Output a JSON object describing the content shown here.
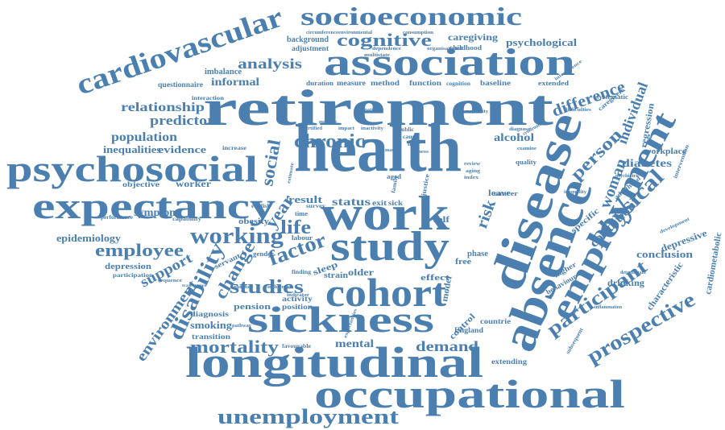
{
  "colors": {
    "word": "#4a7fb0",
    "background": "#ffffff"
  },
  "words": [
    "health",
    "retirement",
    "work",
    "disease",
    "study",
    "absence",
    "cohort",
    "sickness",
    "longitudinal",
    "occupational",
    "association",
    "psychosocial",
    "expectancy",
    "employment",
    "socioeconomic",
    "cardiovascular",
    "unemployment",
    "working",
    "chronic",
    "factor",
    "cognitive",
    "participant",
    "prospective",
    "disability",
    "studies",
    "mortality",
    "change",
    "physical",
    "employee",
    "environment",
    "support",
    "person",
    "analysis",
    "relationship",
    "predictor",
    "population",
    "inequalities",
    "evidence",
    "life",
    "social",
    "year",
    "status",
    "result",
    "demand",
    "mental",
    "risk",
    "woman",
    "difference",
    "individual",
    "condition",
    "depression",
    "epidemiology",
    "symptom",
    "smoking",
    "diagnosis",
    "pension",
    "activity",
    "position",
    "transition",
    "caregiving",
    "psychological",
    "background",
    "adjustment",
    "childhood",
    "alcohol",
    "diabetes",
    "conclusion",
    "depressive",
    "workplace",
    "regression",
    "characteristic",
    "cardiometabolic",
    "drinking",
    "behaviour",
    "higher",
    "specific",
    "England",
    "countrie",
    "extending",
    "informal",
    "imbalance",
    "questionnaire",
    "objective",
    "worker",
    "obesity",
    "older",
    "strain",
    "sleep",
    "effect",
    "control",
    "model",
    "free",
    "phase",
    "leave",
    "self",
    "cancer",
    "baseline",
    "extended",
    "function",
    "method",
    "measure",
    "duration",
    "national",
    "public",
    "cause",
    "hour",
    "aged",
    "exit",
    "sick",
    "labour",
    "time",
    "survey",
    "quality",
    "review",
    "diagnose",
    "examine",
    "estimate",
    "intervention",
    "adulthood",
    "caregivers",
    "systematic",
    "cognition",
    "consumption",
    "circumference",
    "multistate",
    "dependence",
    "organisational",
    "environmental",
    "interaction",
    "capability",
    "performance",
    "participation",
    "servant",
    "gender",
    "finding",
    "favourable",
    "english",
    "interference",
    "difficulties",
    "development",
    "inequality",
    "psychiatric",
    "determinant",
    "inflammation",
    "subsequent",
    "number",
    "pathway",
    "influence",
    "sequence",
    "indicator",
    "inactivity",
    "impact",
    "certified",
    "midlife",
    "morbidity",
    "justice",
    "family",
    "index",
    "syndrome",
    "trajectories",
    "aging",
    "increase",
    "marital",
    "illness",
    "expectancies"
  ]
}
